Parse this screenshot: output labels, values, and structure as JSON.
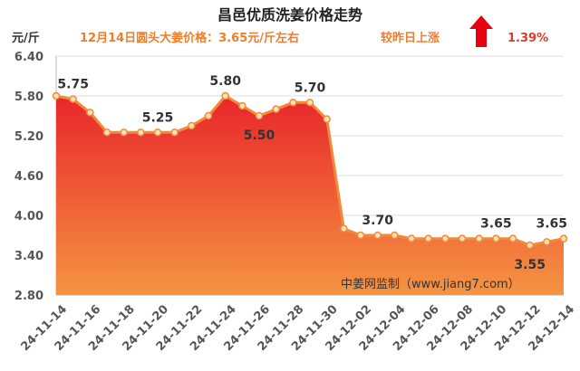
{
  "chart_data": {
    "type": "area",
    "title": "昌邑优质洗姜价格走势",
    "subtitle": "12月14日圆头大姜价格：3.65元/斤左右",
    "change_text": "较昨日上涨",
    "change_pct": "1.39%",
    "change_direction": "up",
    "ylabel": "元/斤",
    "xlabel": "",
    "watermark": "中姜网监制（www.jiang7.com）",
    "ylim": [
      2.8,
      6.4
    ],
    "yticks": [
      "6.40",
      "5.80",
      "5.20",
      "4.60",
      "4.00",
      "3.40",
      "2.80"
    ],
    "grid": "horizontal",
    "x": [
      "24-11-14",
      "24-11-15",
      "24-11-16",
      "24-11-17",
      "24-11-18",
      "24-11-19",
      "24-11-20",
      "24-11-21",
      "24-11-22",
      "24-11-23",
      "24-11-24",
      "24-11-25",
      "24-11-26",
      "24-11-27",
      "24-11-28",
      "24-11-29",
      "24-11-30",
      "24-12-01",
      "24-12-02",
      "24-12-03",
      "24-12-04",
      "24-12-05",
      "24-12-06",
      "24-12-07",
      "24-12-08",
      "24-12-09",
      "24-12-10",
      "24-12-11",
      "24-12-12",
      "24-12-13",
      "24-12-14"
    ],
    "xtick_labels": [
      "24-11-14",
      "24-11-16",
      "24-11-18",
      "24-11-20",
      "24-11-22",
      "24-11-24",
      "24-11-26",
      "24-11-28",
      "24-11-30",
      "24-12-02",
      "24-12-04",
      "24-12-06",
      "24-12-08",
      "24-12-10",
      "24-12-12",
      "24-12-14"
    ],
    "values": [
      5.8,
      5.75,
      5.55,
      5.25,
      5.25,
      5.25,
      5.25,
      5.25,
      5.35,
      5.5,
      5.8,
      5.65,
      5.5,
      5.6,
      5.7,
      5.7,
      5.45,
      3.8,
      3.7,
      3.7,
      3.7,
      3.65,
      3.65,
      3.65,
      3.65,
      3.65,
      3.65,
      3.65,
      3.55,
      3.6,
      3.65
    ],
    "data_labels": [
      {
        "index": 1,
        "text": "5.75"
      },
      {
        "index": 6,
        "text": "5.25"
      },
      {
        "index": 10,
        "text": "5.80"
      },
      {
        "index": 12,
        "text": "5.50"
      },
      {
        "index": 15,
        "text": "5.70"
      },
      {
        "index": 19,
        "text": "3.70"
      },
      {
        "index": 26,
        "text": "3.65"
      },
      {
        "index": 28,
        "text": "3.55"
      },
      {
        "index": 30,
        "text": "3.65"
      }
    ],
    "colors": {
      "line": "#f28a3a",
      "marker_fill": "#fbe3b8",
      "area_top": "#e8262b",
      "area_bottom": "#f59442",
      "title": "#222222",
      "subtitle": "#f07d2a",
      "arrow": "#e60012",
      "pct": "#e23a2a",
      "grid": "#dddddd",
      "axis_text": "#555555",
      "watermark": "#333333"
    }
  }
}
